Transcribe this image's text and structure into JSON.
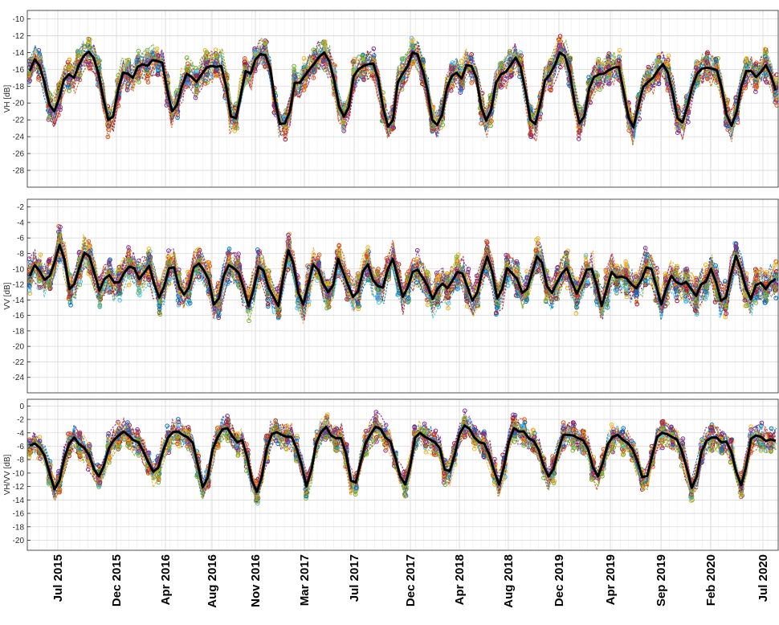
{
  "chart_data": [
    {
      "type": "line",
      "title": "",
      "ylabel": "VH [dB]",
      "xlabel": "",
      "ylim": [
        -30,
        -9
      ],
      "yticks": [
        -10,
        -12,
        -14,
        -16,
        -18,
        -20,
        -22,
        -24,
        -26,
        -28
      ],
      "grid": true,
      "series": [
        {
          "role": "mean",
          "color": "#000000",
          "values": [
            -16.2,
            -14.8,
            -15.6,
            -17.6,
            -20.2,
            -21.0,
            -19.4,
            -17.2,
            -16.6,
            -17.0,
            -15.5,
            -14.4,
            -13.9,
            -14.6,
            -16.5,
            -19.5,
            -22.0,
            -21.6,
            -18.4,
            -16.4,
            -16.5,
            -17.0,
            -15.7,
            -15.4,
            -15.6,
            -14.9,
            -15.0,
            -15.2,
            -18.5,
            -21.0,
            -20.2,
            -18.0,
            -16.5,
            -16.9,
            -17.5,
            -16.6,
            -15.8,
            -15.6,
            -15.7,
            -15.6,
            -18.0,
            -21.6,
            -21.8,
            -19.1,
            -16.2,
            -16.5,
            -14.8,
            -14.2,
            -14.3,
            -15.9,
            -19.8,
            -22.5,
            -22.4,
            -21.0,
            -17.6,
            -17.6,
            -16.8,
            -16.0,
            -15.3,
            -14.5,
            -14.0,
            -15.0,
            -17.2,
            -20.4,
            -21.6,
            -20.5,
            -16.8,
            -16.0,
            -15.6,
            -15.4,
            -15.3,
            -17.1,
            -20.6,
            -22.8,
            -22.0,
            -17.5,
            -16.5,
            -15.6,
            -14.0,
            -14.2,
            -16.0,
            -18.4,
            -22.0,
            -22.6,
            -21.4,
            -18.2,
            -16.8,
            -16.4,
            -17.1,
            -15.5,
            -15.6,
            -17.0,
            -20.5,
            -22.1,
            -20.8,
            -17.6,
            -16.6,
            -16.3,
            -15.5,
            -14.6,
            -15.7,
            -18.6,
            -22.0,
            -22.5,
            -20.2,
            -17.3,
            -16.6,
            -15.5,
            -14.0,
            -14.4,
            -16.3,
            -19.9,
            -22.4,
            -21.6,
            -18.3,
            -16.9,
            -16.6,
            -16.5,
            -16.1,
            -15.8,
            -15.7,
            -18.6,
            -21.7,
            -22.9,
            -20.4,
            -18.1,
            -17.5,
            -17.0,
            -16.1,
            -15.4,
            -16.4,
            -18.8,
            -21.8,
            -22.3,
            -20.4,
            -18.0,
            -16.5,
            -15.9,
            -15.8,
            -15.9,
            -16.1,
            -18.2,
            -21.4,
            -22.7,
            -21.1,
            -18.0,
            -16.2,
            -16.2,
            -16.9,
            -16.3,
            -15.5,
            -16.7,
            -18.5
          ]
        }
      ]
    },
    {
      "type": "line",
      "title": "",
      "ylabel": "VV [dB]",
      "xlabel": "",
      "ylim": [
        -26,
        -1
      ],
      "yticks": [
        -2,
        -4,
        -6,
        -8,
        -10,
        -12,
        -14,
        -16,
        -18,
        -20,
        -22,
        -24
      ],
      "grid": true,
      "series": [
        {
          "role": "mean",
          "color": "#000000",
          "values": [
            -10.9,
            -9.5,
            -10.3,
            -11.4,
            -10.9,
            -9.1,
            -6.9,
            -8.8,
            -12.6,
            -11.9,
            -9.8,
            -7.9,
            -8.4,
            -10.6,
            -12.8,
            -11.3,
            -10.8,
            -11.8,
            -11.7,
            -10.5,
            -9.7,
            -9.9,
            -11.3,
            -10.5,
            -9.6,
            -11.9,
            -13.7,
            -12.3,
            -9.9,
            -9.8,
            -12.3,
            -13.3,
            -12.4,
            -9.8,
            -9.3,
            -10.2,
            -11.4,
            -14.6,
            -13.8,
            -10.9,
            -9.5,
            -9.9,
            -10.5,
            -12.5,
            -14.8,
            -12.7,
            -9.7,
            -10.2,
            -12.4,
            -13.6,
            -14.8,
            -10.8,
            -7.6,
            -9.3,
            -13.1,
            -14.6,
            -12.0,
            -9.4,
            -10.1,
            -11.9,
            -13.0,
            -12.1,
            -8.7,
            -10.4,
            -12.1,
            -13.6,
            -12.9,
            -10.3,
            -9.4,
            -11.4,
            -12.2,
            -12.4,
            -10.0,
            -8.7,
            -11.1,
            -13.6,
            -12.4,
            -10.4,
            -10.1,
            -11.1,
            -12.2,
            -13.9,
            -12.6,
            -11.9,
            -12.5,
            -11.5,
            -10.4,
            -10.6,
            -12.3,
            -14.1,
            -13.0,
            -10.4,
            -8.4,
            -10.4,
            -13.8,
            -12.6,
            -9.9,
            -10.6,
            -11.3,
            -13.1,
            -12.6,
            -10.5,
            -8.4,
            -9.2,
            -12.2,
            -13.1,
            -11.8,
            -10.6,
            -9.9,
            -11.7,
            -13.2,
            -11.8,
            -10.1,
            -10.0,
            -12.1,
            -14.8,
            -12.6,
            -10.4,
            -11.1,
            -11.0,
            -11.2,
            -12.0,
            -12.5,
            -11.4,
            -9.8,
            -10.0,
            -12.3,
            -14.6,
            -12.5,
            -10.9,
            -11.7,
            -12.0,
            -11.7,
            -12.6,
            -13.5,
            -12.0,
            -11.6,
            -10.0,
            -11.7,
            -14.1,
            -13.7,
            -10.7,
            -8.3,
            -10.1,
            -12.5,
            -13.9,
            -12.1,
            -11.8,
            -12.6,
            -11.7,
            -11.3
          ]
        }
      ]
    },
    {
      "type": "line",
      "title": "",
      "ylabel": "VH/VV [dB]",
      "xlabel": "",
      "ylim": [
        -21.5,
        1
      ],
      "yticks": [
        0,
        -2,
        -4,
        -6,
        -8,
        -10,
        -12,
        -14,
        -16,
        -18,
        -20
      ],
      "grid": true,
      "categories_major": [
        "Jul 2015",
        "Dec 2015",
        "Apr 2016",
        "Aug 2016",
        "Nov 2016",
        "Mar 2017",
        "Jul 2017",
        "Dec 2017",
        "Apr 2018",
        "Aug 2018",
        "Dec 2019",
        "Apr 2019",
        "Sep 2019",
        "Feb 2020",
        "Jul 2020"
      ],
      "series": [
        {
          "role": "mean",
          "color": "#000000",
          "values": [
            -5.9,
            -5.6,
            -6.2,
            -7.4,
            -10.0,
            -12.4,
            -11.1,
            -7.8,
            -5.6,
            -4.7,
            -5.7,
            -6.2,
            -7.3,
            -9.4,
            -10.5,
            -8.9,
            -6.3,
            -5.1,
            -4.4,
            -3.8,
            -4.4,
            -5.1,
            -5.4,
            -6.8,
            -8.4,
            -9.8,
            -9.2,
            -6.7,
            -4.7,
            -3.9,
            -3.8,
            -4.3,
            -4.7,
            -5.5,
            -8.7,
            -12.1,
            -10.7,
            -6.5,
            -4.7,
            -3.5,
            -3.3,
            -4.5,
            -5.4,
            -5.1,
            -7.6,
            -11.2,
            -12.8,
            -10.4,
            -6.3,
            -4.2,
            -3.9,
            -4.3,
            -4.6,
            -4.6,
            -6.3,
            -8.7,
            -12.0,
            -9.6,
            -5.5,
            -3.9,
            -3.1,
            -4.4,
            -4.8,
            -4.8,
            -7.1,
            -11.1,
            -11.4,
            -8.3,
            -5.5,
            -4.2,
            -3.1,
            -3.4,
            -4.7,
            -5.3,
            -7.7,
            -10.5,
            -11.7,
            -9.0,
            -4.7,
            -4.0,
            -4.6,
            -5.0,
            -5.4,
            -6.3,
            -9.5,
            -9.7,
            -7.3,
            -4.2,
            -2.9,
            -3.4,
            -4.7,
            -5.4,
            -5.6,
            -7.2,
            -9.7,
            -11.7,
            -9.0,
            -5.3,
            -3.3,
            -3.8,
            -3.8,
            -4.8,
            -5.2,
            -6.5,
            -8.9,
            -10.5,
            -9.4,
            -6.6,
            -4.3,
            -4.3,
            -4.4,
            -4.8,
            -5.1,
            -6.4,
            -9.1,
            -10.5,
            -8.4,
            -5.7,
            -4.6,
            -4.3,
            -5.0,
            -5.5,
            -6.4,
            -8.2,
            -10.6,
            -10.4,
            -7.4,
            -4.6,
            -4.0,
            -4.2,
            -4.6,
            -5.0,
            -6.7,
            -9.3,
            -12.2,
            -10.5,
            -6.8,
            -5.2,
            -4.7,
            -4.7,
            -5.4,
            -5.3,
            -6.8,
            -9.8,
            -11.8,
            -9.0,
            -4.9,
            -4.4,
            -4.6,
            -5.2,
            -5.0,
            -5.2
          ]
        }
      ]
    }
  ]
}
